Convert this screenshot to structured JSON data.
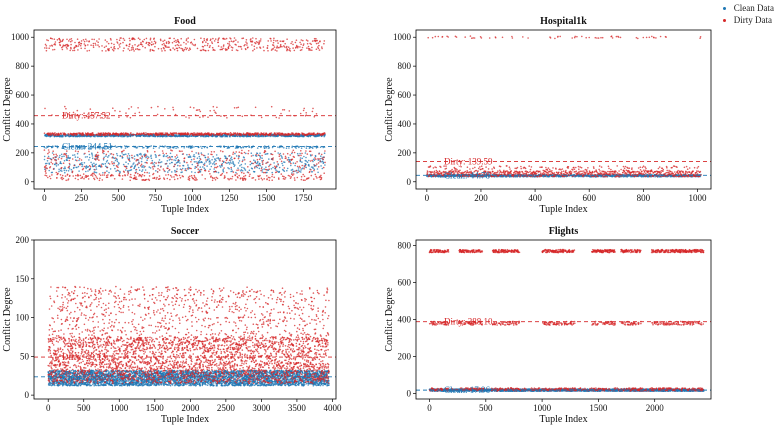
{
  "legend": {
    "clean_label": "Clean Data",
    "dirty_label": "Dirty Data"
  },
  "colors": {
    "clean": "#1f77b4",
    "dirty": "#d62728"
  },
  "chart_data": [
    {
      "type": "scatter",
      "title": "Food",
      "xlabel": "Tuple Index",
      "ylabel": "Conflict Degree",
      "xlim": [
        -70,
        1970
      ],
      "ylim": [
        -50,
        1050
      ],
      "xticks": [
        0,
        250,
        500,
        750,
        1000,
        1250,
        1500,
        1750
      ],
      "yticks": [
        0,
        200,
        400,
        600,
        800,
        1000
      ],
      "n_points": 1900,
      "clean_mean": 244.51,
      "dirty_mean": 457.52,
      "clean_label": "Clean: 244.51",
      "dirty_label": "Dirty: 457.52",
      "clean_bands": [
        [
          320,
          8,
          0.55
        ],
        [
          240,
          8,
          0.12
        ],
        [
          130,
          70,
          0.33
        ]
      ],
      "dirty_bands": [
        [
          330,
          8,
          0.35
        ],
        [
          950,
          45,
          0.28
        ],
        [
          130,
          90,
          0.22
        ],
        [
          480,
          40,
          0.05
        ],
        [
          30,
          20,
          0.1
        ]
      ]
    },
    {
      "type": "scatter",
      "title": "Hospital1k",
      "xlabel": "Tuple Index",
      "ylabel": "Conflict Degree",
      "xlim": [
        -40,
        1050
      ],
      "ylim": [
        -50,
        1050
      ],
      "xticks": [
        0,
        200,
        400,
        600,
        800,
        1000
      ],
      "yticks": [
        0,
        200,
        400,
        600,
        800,
        1000
      ],
      "n_points": 1000,
      "clean_mean": 44.78,
      "dirty_mean": 139.59,
      "clean_label": "Clean: 44.78",
      "dirty_label": "Dirty: 139.59",
      "clean_bands": [
        [
          42,
          8,
          1.0
        ]
      ],
      "dirty_bands": [
        [
          55,
          20,
          0.75
        ],
        [
          90,
          20,
          0.2
        ],
        [
          1000,
          8,
          0.05
        ]
      ]
    },
    {
      "type": "scatter",
      "title": "Soccer",
      "xlabel": "Tuple Index",
      "ylabel": "Conflict Degree",
      "xlim": [
        -200,
        4050
      ],
      "ylim": [
        -5,
        200
      ],
      "xticks": [
        0,
        500,
        1000,
        1500,
        2000,
        2500,
        3000,
        3500,
        4000
      ],
      "yticks": [
        0,
        50,
        100,
        150,
        200
      ],
      "n_points": 3850,
      "clean_mean": 23.57,
      "dirty_mean": 49.13,
      "clean_label": "Clean: 23.57",
      "dirty_label": "Dirty: 49.13",
      "clean_bands": [
        [
          22,
          10,
          1.0
        ]
      ],
      "dirty_bands": [
        [
          45,
          30,
          0.6
        ],
        [
          100,
          40,
          0.3
        ],
        [
          30,
          12,
          0.1
        ]
      ]
    },
    {
      "type": "scatter",
      "title": "Flights",
      "xlabel": "Tuple Index",
      "ylabel": "Conflict Degree",
      "xlim": [
        -120,
        2500
      ],
      "ylim": [
        -30,
        830
      ],
      "xticks": [
        0,
        500,
        1000,
        1500,
        2000
      ],
      "yticks": [
        0,
        200,
        400,
        600,
        800
      ],
      "n_points": 2380,
      "clean_mean": 17.96,
      "dirty_mean": 388.1,
      "clean_label": "Clean: 17.96",
      "dirty_label": "Dirty: 388.10",
      "clean_bands": [
        [
          18,
          6,
          1.0
        ]
      ],
      "dirty_bands": [
        [
          770,
          8,
          0.45
        ],
        [
          380,
          10,
          0.25
        ],
        [
          22,
          8,
          0.3
        ]
      ],
      "dirty_gaps": [
        [
          170,
          260
        ],
        [
          470,
          560
        ],
        [
          800,
          1000
        ],
        [
          1290,
          1440
        ],
        [
          1650,
          1700
        ],
        [
          1880,
          1970
        ]
      ]
    }
  ]
}
